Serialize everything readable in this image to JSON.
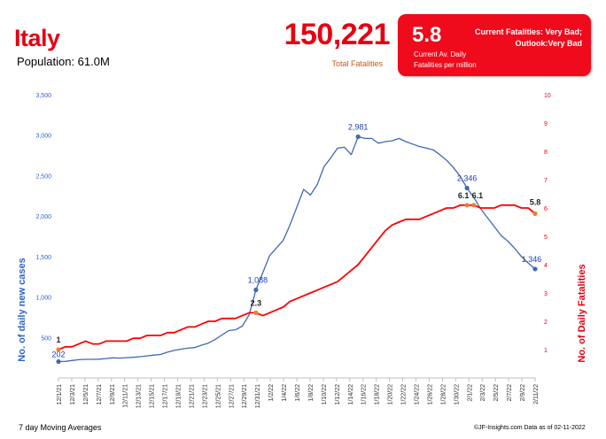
{
  "header": {
    "country": "Italy",
    "population": "Population: 61.0M",
    "total_value": "150,221",
    "total_label": "Total Fatalities"
  },
  "status": {
    "value": "5.8",
    "line1": "Current Fatalities: Very Bad;",
    "line2": "Outlook:Very Bad",
    "sub1": "Current Av. Daily",
    "sub2": "Fatalities per million",
    "color": "#ef0a1c"
  },
  "footer": {
    "left": "7 day Moving Averages",
    "right": "©JF-Insights.com  Data as of 02-11-2022"
  },
  "colors": {
    "cases": "#3f68b6",
    "fatalities": "#ff0000",
    "markers": "#ed7d31"
  },
  "chart_data": {
    "type": "line",
    "ylabel": "No. of daily new  cases",
    "y2label": "No. of Daily Fatalities",
    "ylim": [
      0,
      3500
    ],
    "y2lim": [
      0,
      10
    ],
    "y_ticks": [
      "500",
      "1,000",
      "1,500",
      "2,000",
      "2,500",
      "3,000",
      "3,500"
    ],
    "y2_ticks": [
      "1",
      "2",
      "3",
      "4",
      "5",
      "6",
      "7",
      "8",
      "9",
      "10"
    ],
    "x_tick_labels": [
      "12/1/21",
      "12/3/21",
      "12/5/21",
      "12/7/21",
      "12/9/21",
      "12/11/21",
      "12/13/21",
      "12/15/21",
      "12/17/21",
      "12/19/21",
      "12/21/21",
      "12/23/21",
      "12/25/21",
      "12/27/21",
      "12/29/21",
      "12/31/21",
      "1/2/22",
      "1/4/22",
      "1/6/22",
      "1/8/22",
      "1/10/22",
      "1/12/22",
      "1/14/22",
      "1/16/22",
      "1/18/22",
      "1/20/22",
      "1/22/22",
      "1/24/22",
      "1/26/22",
      "1/28/22",
      "1/30/22",
      "2/1/22",
      "2/3/22",
      "2/5/22",
      "2/7/22",
      "2/9/22",
      "2/11/22"
    ],
    "series": [
      {
        "name": "No. of daily new  cases",
        "axis": "left",
        "values": [
          202,
          205,
          215,
          225,
          230,
          230,
          232,
          240,
          248,
          245,
          250,
          255,
          262,
          272,
          282,
          290,
          318,
          340,
          355,
          368,
          375,
          405,
          430,
          475,
          530,
          585,
          595,
          640,
          780,
          1088,
          1300,
          1510,
          1605,
          1700,
          1890,
          2110,
          2330,
          2260,
          2390,
          2610,
          2720,
          2840,
          2850,
          2760,
          2981,
          2960,
          2960,
          2900,
          2920,
          2930,
          2960,
          2920,
          2890,
          2860,
          2840,
          2820,
          2760,
          2690,
          2600,
          2490,
          2346,
          2230,
          2090,
          1980,
          1870,
          1760,
          1690,
          1600,
          1500,
          1420,
          1346
        ]
      },
      {
        "name": "No. of Daily Fatalities",
        "axis": "right",
        "values": [
          1.0,
          1.1,
          1.1,
          1.2,
          1.3,
          1.2,
          1.2,
          1.3,
          1.3,
          1.3,
          1.3,
          1.4,
          1.4,
          1.5,
          1.5,
          1.5,
          1.6,
          1.6,
          1.7,
          1.8,
          1.8,
          1.9,
          2.0,
          2.0,
          2.1,
          2.1,
          2.1,
          2.2,
          2.3,
          2.3,
          2.2,
          2.3,
          2.4,
          2.5,
          2.7,
          2.8,
          2.9,
          3.0,
          3.1,
          3.2,
          3.3,
          3.4,
          3.6,
          3.8,
          4.0,
          4.3,
          4.6,
          4.9,
          5.2,
          5.4,
          5.5,
          5.6,
          5.6,
          5.6,
          5.7,
          5.8,
          5.9,
          6.0,
          6.0,
          6.1,
          6.1,
          6.1,
          6.0,
          6.0,
          6.0,
          6.1,
          6.1,
          6.1,
          6.0,
          6.0,
          5.8
        ]
      }
    ],
    "annotations": [
      {
        "label": "202",
        "series": 0,
        "index": 0
      },
      {
        "label": "1,088",
        "series": 0,
        "index": 29
      },
      {
        "label": "2,981",
        "series": 0,
        "index": 44
      },
      {
        "label": "2,346",
        "series": 0,
        "index": 60
      },
      {
        "label": "1,346",
        "series": 0,
        "index": 70
      },
      {
        "label": "1",
        "series": 1,
        "index": 0
      },
      {
        "label": "2.3",
        "series": 1,
        "index": 29
      },
      {
        "label": "6.1",
        "series": 1,
        "index": 60
      },
      {
        "label": "6.1",
        "series": 1,
        "index": 61
      },
      {
        "label": "5.8",
        "series": 1,
        "index": 70
      }
    ]
  }
}
